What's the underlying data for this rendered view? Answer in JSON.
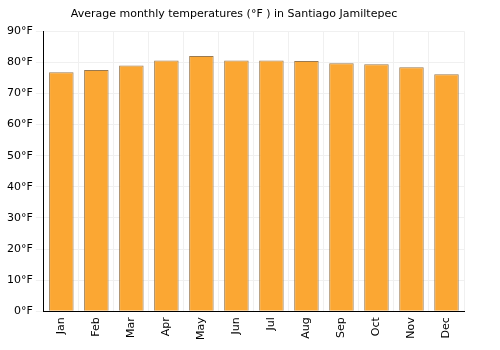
{
  "chart_data": {
    "type": "bar",
    "title": "Average monthly temperatures (°F ) in Santiago Jamiltepec",
    "categories": [
      "Jan",
      "Feb",
      "Mar",
      "Apr",
      "May",
      "Jun",
      "Jul",
      "Aug",
      "Sep",
      "Oct",
      "Nov",
      "Dec"
    ],
    "values": [
      76.8,
      77.5,
      79.0,
      80.6,
      82.0,
      80.6,
      80.6,
      80.4,
      79.7,
      79.4,
      78.4,
      76.2
    ],
    "color": "#fba733",
    "ylim": [
      0,
      90
    ],
    "yticks": [
      {
        "value": 0,
        "label": "0°F"
      },
      {
        "value": 10,
        "label": "10°F"
      },
      {
        "value": 20,
        "label": "20°F"
      },
      {
        "value": 30,
        "label": "30°F"
      },
      {
        "value": 40,
        "label": "40°F"
      },
      {
        "value": 50,
        "label": "50°F"
      },
      {
        "value": 60,
        "label": "60°F"
      },
      {
        "value": 70,
        "label": "70°F"
      },
      {
        "value": 80,
        "label": "80°F"
      },
      {
        "value": 90,
        "label": "90°F"
      }
    ],
    "grid": true
  }
}
